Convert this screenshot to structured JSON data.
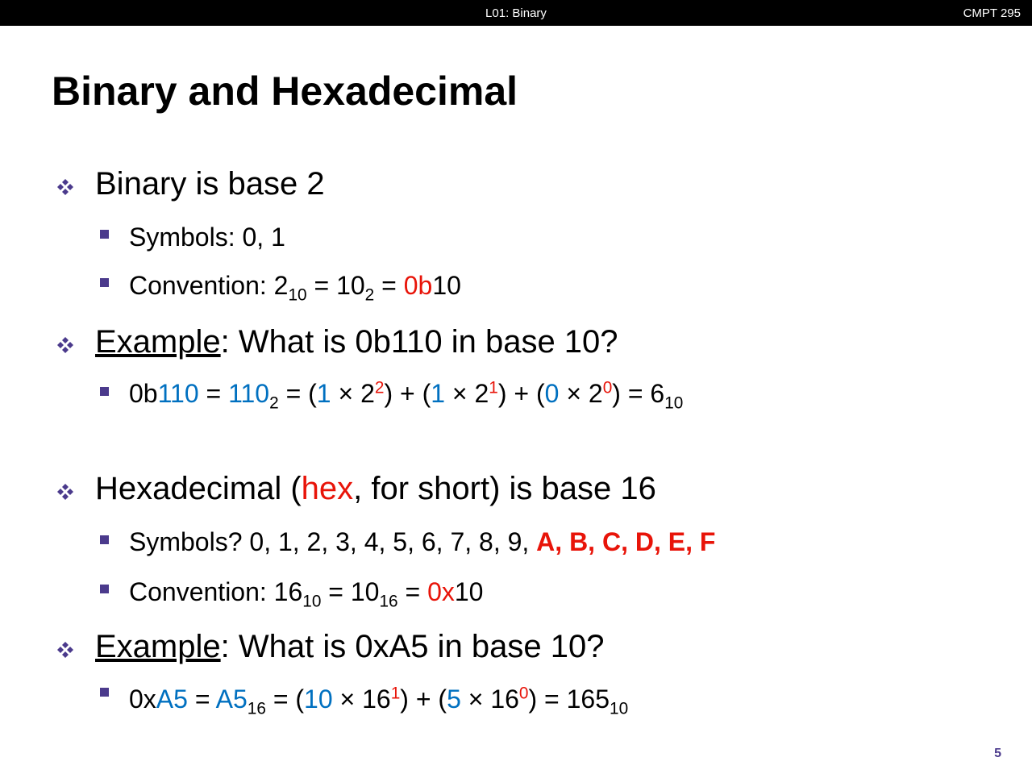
{
  "header": {
    "title": "L01:  Binary",
    "course": "CMPT 295"
  },
  "title": "Binary and Hexadecimal",
  "page_number": "5",
  "lines": [
    {
      "level": 1,
      "segments": [
        {
          "text": "Binary is base 2"
        }
      ]
    },
    {
      "level": 2,
      "segments": [
        {
          "text": "Symbols:  0, 1"
        }
      ]
    },
    {
      "level": 2,
      "segments": [
        {
          "text": "Convention:  2"
        },
        {
          "text": "10",
          "pos": "sub"
        },
        {
          "text": " = 10"
        },
        {
          "text": "2",
          "pos": "sub"
        },
        {
          "text": " = "
        },
        {
          "text": "0b",
          "color": "#e81409"
        },
        {
          "text": "10"
        }
      ]
    },
    {
      "level": 1,
      "segments": [
        {
          "text": "Example",
          "underline": true
        },
        {
          "text": ":  What is 0b110 in base 10?"
        }
      ]
    },
    {
      "level": 2,
      "segments": [
        {
          "text": "0b"
        },
        {
          "text": "110",
          "color": "#0070c0"
        },
        {
          "text": " = "
        },
        {
          "text": "110",
          "color": "#0070c0"
        },
        {
          "text": "2",
          "pos": "sub"
        },
        {
          "text": " = ("
        },
        {
          "text": "1",
          "color": "#0070c0"
        },
        {
          "text": " × 2"
        },
        {
          "text": "2",
          "pos": "sup",
          "color": "#e81409"
        },
        {
          "text": ") + ("
        },
        {
          "text": "1",
          "color": "#0070c0"
        },
        {
          "text": " × 2"
        },
        {
          "text": "1",
          "pos": "sup",
          "color": "#e81409"
        },
        {
          "text": ") + ("
        },
        {
          "text": "0",
          "color": "#0070c0"
        },
        {
          "text": " × 2"
        },
        {
          "text": "0",
          "pos": "sup",
          "color": "#e81409"
        },
        {
          "text": ") = 6"
        },
        {
          "text": "10",
          "pos": "sub"
        }
      ]
    },
    {
      "level": 1,
      "segments": [
        {
          "text": "Hexadecimal ("
        },
        {
          "text": "hex",
          "color": "#e81409"
        },
        {
          "text": ", for short) is base 16"
        }
      ]
    },
    {
      "level": 2,
      "segments": [
        {
          "text": "Symbols?  0, 1, 2, 3, 4, 5, 6, 7, 8, 9, "
        },
        {
          "text": "A, B, C, D, E, F",
          "color": "#e81409",
          "bold": true
        }
      ]
    },
    {
      "level": 2,
      "segments": [
        {
          "text": "Convention:  16"
        },
        {
          "text": "10",
          "pos": "sub"
        },
        {
          "text": " = 10"
        },
        {
          "text": "16",
          "pos": "sub"
        },
        {
          "text": " = "
        },
        {
          "text": "0x",
          "color": "#e81409"
        },
        {
          "text": "10"
        }
      ]
    },
    {
      "level": 1,
      "segments": [
        {
          "text": "Example",
          "underline": true
        },
        {
          "text": ":  What is 0xA5 in base 10?"
        }
      ]
    },
    {
      "level": 2,
      "segments": [
        {
          "text": "0x"
        },
        {
          "text": "A5",
          "color": "#0070c0"
        },
        {
          "text": " = "
        },
        {
          "text": "A5",
          "color": "#0070c0"
        },
        {
          "text": "16",
          "pos": "sub"
        },
        {
          "text": " = ("
        },
        {
          "text": "10",
          "color": "#0070c0"
        },
        {
          "text": " × 16"
        },
        {
          "text": "1",
          "pos": "sup",
          "color": "#e81409"
        },
        {
          "text": ") + ("
        },
        {
          "text": "5",
          "color": "#0070c0"
        },
        {
          "text": " × 16"
        },
        {
          "text": "0",
          "pos": "sup",
          "color": "#e81409"
        },
        {
          "text": ") = 165"
        },
        {
          "text": "10",
          "pos": "sub"
        }
      ]
    }
  ]
}
